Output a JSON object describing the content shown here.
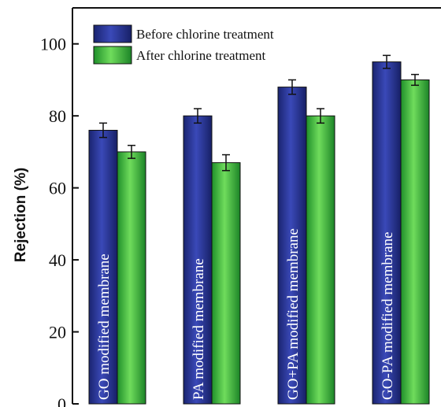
{
  "chart_data": {
    "type": "bar",
    "ylabel": "Rejection (%)",
    "xlabel": "",
    "ylim": [
      0,
      110
    ],
    "yticks": [
      0,
      20,
      40,
      60,
      80,
      100
    ],
    "grid": false,
    "legend_position": "top-left",
    "categories": [
      "GO modified membrane",
      "PA modified membrane",
      "GO+PA modified membrane",
      "GO-PA modified membrane"
    ],
    "series": [
      {
        "name": "Before chlorine treatment",
        "values": [
          76,
          80,
          88,
          95
        ],
        "errors": [
          2,
          2,
          2,
          1.8
        ],
        "color": "#23318f"
      },
      {
        "name": "After chlorine treatment",
        "values": [
          70,
          67,
          80,
          90
        ],
        "errors": [
          1.8,
          2.2,
          2,
          1.5
        ],
        "color": "#2fb23a"
      }
    ]
  }
}
